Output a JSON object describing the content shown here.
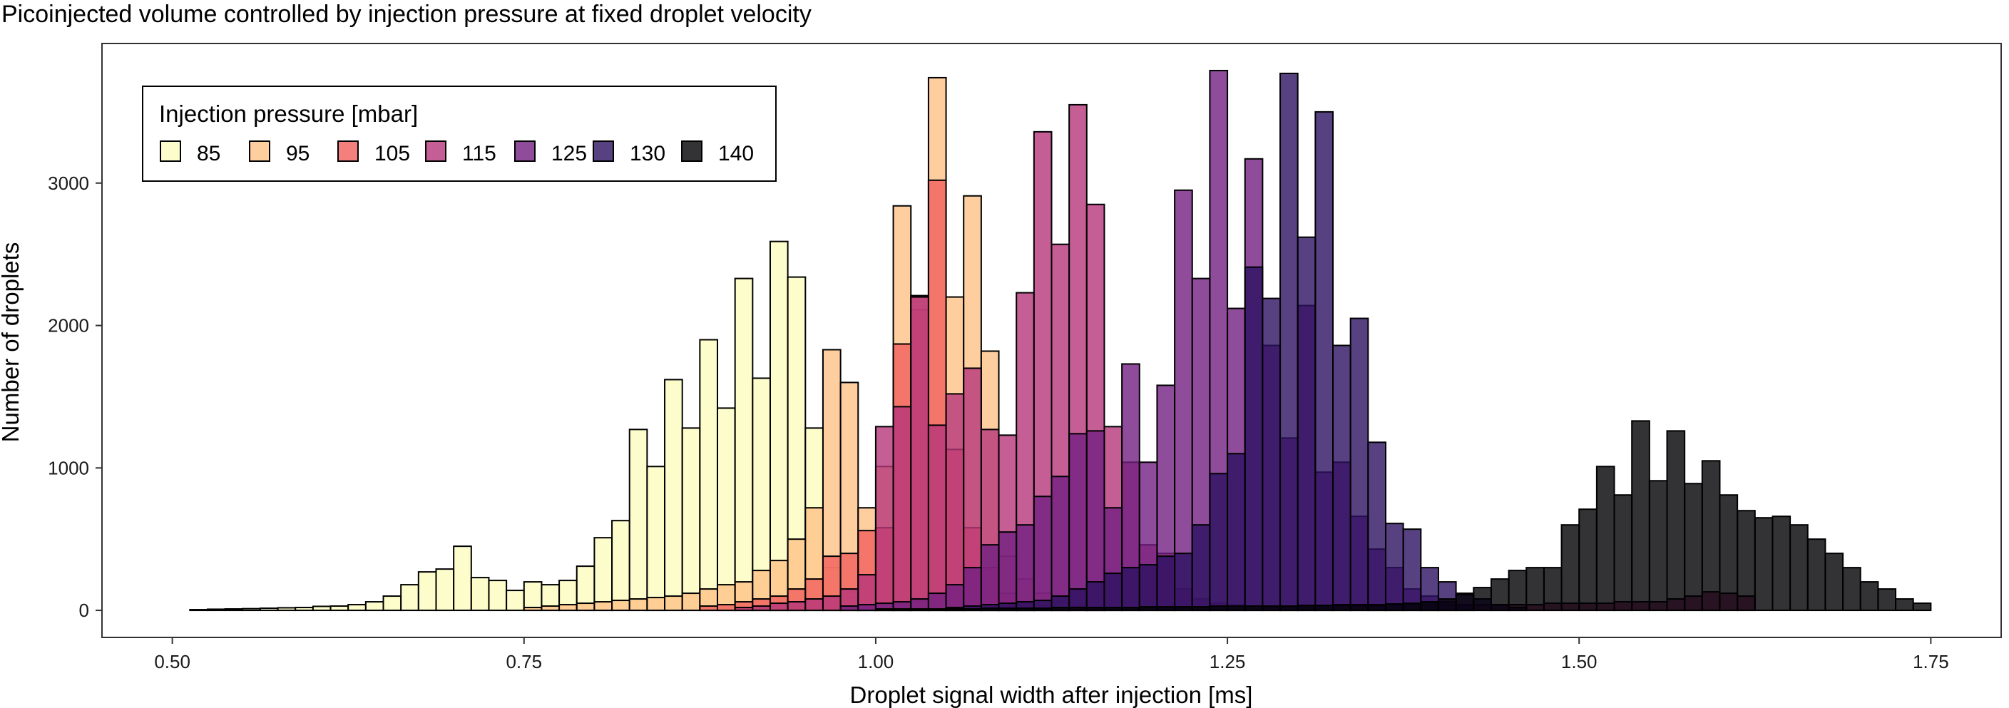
{
  "chart_data": {
    "type": "bar",
    "subtype": "overlaid histogram",
    "title": "Picoinjected volume controlled by injection pressure at fixed droplet velocity",
    "xlabel": "Droplet signal width after injection [ms]",
    "ylabel": "Number of droplets",
    "xlim": [
      0.45,
      1.8
    ],
    "ylim": [
      -190,
      3980
    ],
    "x_ticks": [
      0.5,
      0.75,
      1.0,
      1.25,
      1.5,
      1.75
    ],
    "x_tick_labels": [
      "0.50",
      "0.75",
      "1.00",
      "1.25",
      "1.50",
      "1.75"
    ],
    "y_ticks": [
      0,
      1000,
      2000,
      3000
    ],
    "y_tick_labels": [
      "0",
      "1000",
      "2000",
      "3000"
    ],
    "bin_width": 0.0125,
    "grid": false,
    "legend": {
      "title": "Injection pressure [mbar]",
      "position": "top-left",
      "orientation": "horizontal"
    },
    "series": [
      {
        "name": "85",
        "color": "#FCFDBF",
        "start": 0.5125,
        "values": [
          5,
          8,
          10,
          12,
          15,
          18,
          20,
          28,
          30,
          40,
          60,
          100,
          180,
          270,
          290,
          450,
          230,
          210,
          140,
          200,
          180,
          210,
          310,
          510,
          630,
          1270,
          1010,
          1620,
          1280,
          1900,
          1420,
          2330,
          1630,
          2590,
          2340,
          1280,
          300,
          90,
          40,
          20,
          10,
          5
        ]
      },
      {
        "name": "95",
        "color": "#FEC287",
        "start": 0.75,
        "values": [
          20,
          30,
          40,
          50,
          60,
          70,
          80,
          90,
          100,
          120,
          150,
          180,
          200,
          280,
          350,
          500,
          720,
          1830,
          1600,
          720,
          1010,
          2840,
          2110,
          3740,
          2200,
          2910,
          1820,
          380,
          220,
          120,
          60,
          30,
          15
        ]
      },
      {
        "name": "105",
        "color": "#F1605D",
        "start": 0.875,
        "values": [
          30,
          40,
          60,
          80,
          100,
          150,
          220,
          380,
          400,
          560,
          580,
          1870,
          2210,
          3020,
          1130,
          580,
          300,
          120,
          50,
          30,
          20
        ]
      },
      {
        "name": "115",
        "color": "#B5367A",
        "start": 0.9,
        "values": [
          20,
          30,
          50,
          60,
          80,
          100,
          150,
          250,
          1290,
          1430,
          2200,
          1300,
          1520,
          1700,
          1270,
          1230,
          2230,
          3360,
          2570,
          3550,
          2850,
          1290,
          1040,
          460,
          400,
          150,
          80,
          50,
          40,
          30,
          20,
          20,
          20,
          30,
          30,
          30,
          30,
          40,
          40,
          40,
          40,
          40,
          40,
          40,
          40,
          40,
          50,
          50,
          50,
          50,
          60,
          60,
          60,
          80,
          100,
          130,
          120,
          100
        ]
      },
      {
        "name": "125",
        "color": "#721F81",
        "start": 0.975,
        "values": [
          30,
          40,
          50,
          60,
          80,
          120,
          180,
          300,
          460,
          550,
          600,
          800,
          940,
          1240,
          1260,
          720,
          1730,
          1040,
          1580,
          2950,
          2330,
          3790,
          2120,
          3170,
          1860,
          1210,
          2140,
          970,
          1040,
          660,
          430,
          300,
          150,
          100,
          60,
          40
        ]
      },
      {
        "name": "130",
        "color": "#2D1160",
        "start": 1.05,
        "values": [
          20,
          30,
          40,
          50,
          60,
          70,
          100,
          150,
          200,
          260,
          300,
          320,
          380,
          400,
          600,
          960,
          1100,
          2410,
          2190,
          3770,
          2620,
          3500,
          1860,
          2050,
          1180,
          610,
          570,
          300,
          200,
          120,
          80,
          40,
          20
        ]
      },
      {
        "name": "140",
        "color": "#000004",
        "start": 1.0,
        "values": [
          10,
          10,
          10,
          10,
          10,
          10,
          15,
          15,
          15,
          15,
          20,
          20,
          20,
          20,
          20,
          25,
          25,
          25,
          25,
          30,
          30,
          30,
          30,
          30,
          35,
          35,
          40,
          40,
          40,
          45,
          50,
          60,
          80,
          110,
          160,
          220,
          280,
          300,
          300,
          600,
          710,
          1010,
          810,
          1330,
          910,
          1260,
          890,
          1050,
          810,
          700,
          650,
          660,
          600,
          500,
          400,
          300,
          200,
          150,
          80,
          50
        ]
      }
    ]
  }
}
